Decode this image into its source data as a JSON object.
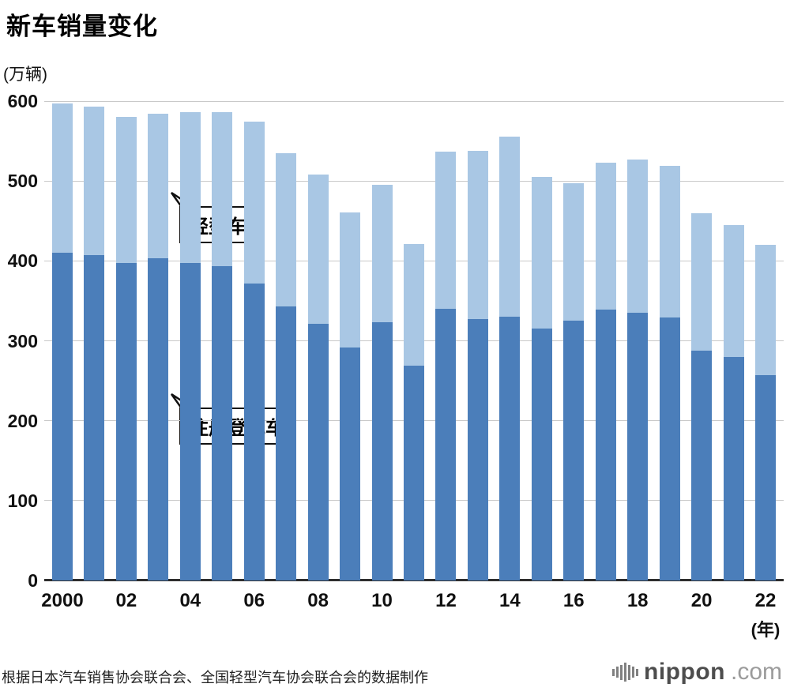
{
  "title": "新车销量变化",
  "y_unit": "(万辆)",
  "x_unit": "(年)",
  "callouts": {
    "kei": "轻型车",
    "registered": "注册登记车"
  },
  "footer": {
    "source": "根据日本汽车销售协会联合会、全国轻型汽车协会联合会的数据制作"
  },
  "logo": {
    "name": "nippon",
    "suffix": ".com"
  },
  "chart_data": {
    "type": "bar",
    "stacked": true,
    "title": "新车销量变化",
    "ylabel": "(万辆)",
    "xlabel": "(年)",
    "ylim": [
      0,
      600
    ],
    "yticks": [
      0,
      100,
      200,
      300,
      400,
      500,
      600
    ],
    "grid": true,
    "legend_position": "inline-callouts",
    "categories": [
      2000,
      2001,
      2002,
      2003,
      2004,
      2005,
      2006,
      2007,
      2008,
      2009,
      2010,
      2011,
      2012,
      2013,
      2014,
      2015,
      2016,
      2017,
      2018,
      2019,
      2020,
      2021,
      2022
    ],
    "x_tick_labels": [
      "2000",
      "",
      "02",
      "",
      "04",
      "",
      "06",
      "",
      "08",
      "",
      "10",
      "",
      "12",
      "",
      "14",
      "",
      "16",
      "",
      "18",
      "",
      "20",
      "",
      "22"
    ],
    "series": [
      {
        "name": "注册登记车",
        "color": "#4b7eba",
        "values": [
          410,
          407,
          397,
          403,
          397,
          393,
          372,
          343,
          321,
          292,
          323,
          269,
          340,
          327,
          330,
          315,
          325,
          339,
          335,
          329,
          288,
          280,
          257
        ]
      },
      {
        "name": "轻型车",
        "color": "#a9c7e4",
        "values": [
          187,
          186,
          183,
          181,
          189,
          193,
          202,
          192,
          187,
          169,
          172,
          152,
          197,
          211,
          226,
          190,
          172,
          184,
          192,
          190,
          172,
          165,
          163
        ]
      }
    ]
  }
}
